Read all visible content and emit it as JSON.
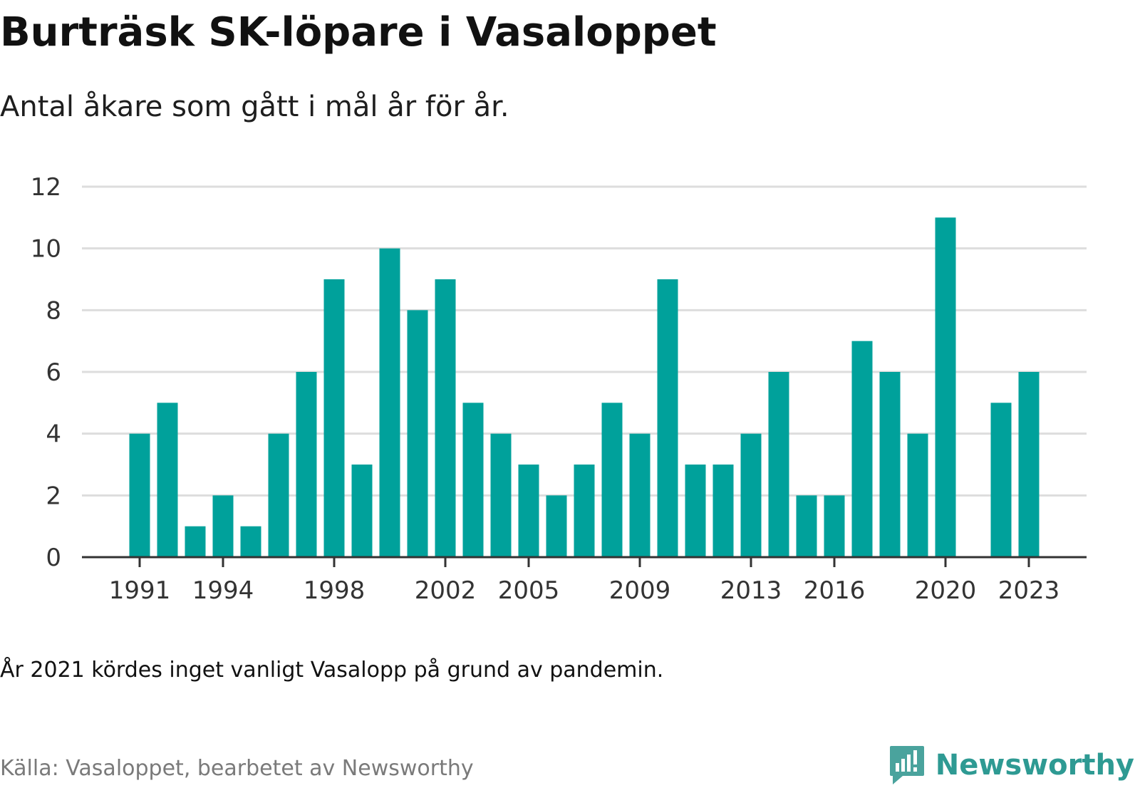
{
  "title": "Burträsk SK-löpare i Vasaloppet",
  "subtitle": "Antal åkare som gått i mål år för år.",
  "note": "År 2021 kördes inget vanligt Vasalopp på grund av pandemin.",
  "source": "Källa: Vasaloppet, bearbetet av Newsworthy",
  "brand": "Newsworthy",
  "colors": {
    "bar": "#00a19b",
    "grid": "#dddddd",
    "axis": "#333333",
    "tick_text": "#333333",
    "brand": "#2e9a93",
    "source_text": "#7a7a7a"
  },
  "chart_data": {
    "type": "bar",
    "title": "",
    "xlabel": "",
    "ylabel": "",
    "ylim": [
      0,
      12
    ],
    "y_ticks": [
      0,
      2,
      4,
      6,
      8,
      10,
      12
    ],
    "x_tick_labels": [
      "1991",
      "1994",
      "1998",
      "2002",
      "2005",
      "2009",
      "2013",
      "2016",
      "2020",
      "2023"
    ],
    "grid": true,
    "categories": [
      1991,
      1992,
      1993,
      1994,
      1995,
      1996,
      1997,
      1998,
      1999,
      2000,
      2001,
      2002,
      2003,
      2004,
      2005,
      2006,
      2007,
      2008,
      2009,
      2010,
      2011,
      2012,
      2013,
      2014,
      2015,
      2016,
      2017,
      2018,
      2019,
      2020,
      2021,
      2022,
      2023
    ],
    "values": [
      4,
      5,
      1,
      2,
      1,
      4,
      6,
      9,
      3,
      10,
      8,
      9,
      5,
      4,
      3,
      2,
      3,
      5,
      4,
      9,
      3,
      3,
      4,
      6,
      2,
      2,
      7,
      6,
      4,
      11,
      null,
      5,
      6
    ]
  }
}
